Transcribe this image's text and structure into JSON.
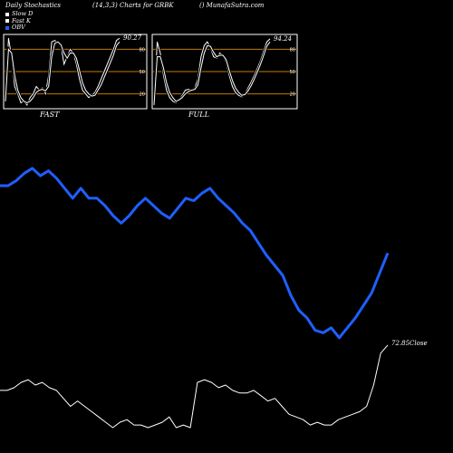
{
  "header": {
    "left": "Daily Stochastics",
    "center": "(14,3,3) Charts for GRBK",
    "right": "() MunafaSutra.com"
  },
  "legend": [
    {
      "label": "Slow  D",
      "color": "#ffffff"
    },
    {
      "label": "Fast K",
      "color": "#ffffff"
    },
    {
      "label": "OBV",
      "color": "#1f5fff"
    }
  ],
  "colors": {
    "obv": "#1f5fff",
    "stoch": "#ffffff",
    "ref_line": "#c47a00",
    "bg": "#000000"
  },
  "chart_data": [
    {
      "type": "line",
      "title": "FAST",
      "ylim": [
        0,
        100
      ],
      "yticks": [
        20,
        50,
        80
      ],
      "last_value_label": "90.27",
      "series": [
        {
          "name": "Fast K",
          "values": [
            10,
            95,
            70,
            30,
            20,
            8,
            10,
            5,
            15,
            20,
            30,
            25,
            28,
            20,
            45,
            90,
            92,
            88,
            85,
            60,
            70,
            80,
            75,
            60,
            40,
            25,
            20,
            15,
            18,
            22,
            30,
            40,
            50,
            60,
            70,
            80,
            92,
            95
          ]
        },
        {
          "name": "Slow  D",
          "values": [
            10,
            80,
            75,
            45,
            25,
            15,
            10,
            8,
            10,
            15,
            22,
            25,
            26,
            24,
            30,
            70,
            88,
            90,
            86,
            75,
            68,
            75,
            75,
            68,
            52,
            35,
            25,
            20,
            17,
            18,
            25,
            32,
            42,
            52,
            62,
            72,
            85,
            90
          ]
        }
      ]
    },
    {
      "type": "line",
      "title": "FULL",
      "ylim": [
        0,
        100
      ],
      "yticks": [
        20,
        50,
        80
      ],
      "last_value_label": "94.24",
      "series": [
        {
          "name": "Fast K",
          "values": [
            5,
            90,
            75,
            45,
            25,
            15,
            10,
            8,
            12,
            18,
            25,
            26,
            25,
            28,
            40,
            70,
            85,
            90,
            82,
            70,
            68,
            75,
            72,
            62,
            45,
            30,
            22,
            18,
            16,
            20,
            28,
            36,
            45,
            55,
            65,
            78,
            90,
            94
          ]
        },
        {
          "name": "Slow  D",
          "values": [
            5,
            70,
            70,
            55,
            35,
            22,
            15,
            10,
            12,
            15,
            20,
            23,
            25,
            26,
            32,
            55,
            75,
            85,
            84,
            76,
            70,
            72,
            72,
            66,
            52,
            38,
            28,
            22,
            18,
            19,
            24,
            31,
            40,
            50,
            60,
            72,
            84,
            90
          ]
        }
      ]
    },
    {
      "type": "line",
      "title": "",
      "ylim": [
        0,
        100
      ],
      "series": [
        {
          "name": "OBV",
          "values": [
            80,
            80,
            82,
            85,
            87,
            84,
            86,
            83,
            79,
            75,
            79,
            75,
            75,
            72,
            68,
            65,
            68,
            72,
            75,
            72,
            69,
            67,
            71,
            75,
            74,
            77,
            79,
            75,
            72,
            69,
            65,
            62,
            57,
            52,
            48,
            44,
            36,
            30,
            27,
            22,
            21,
            23,
            19,
            23,
            27,
            32,
            37,
            45,
            53
          ]
        }
      ]
    },
    {
      "type": "line",
      "title": "",
      "last_value_label": "72.85",
      "last_value_suffix": "Close",
      "series": [
        {
          "name": "Close",
          "values": [
            72.0,
            72.0,
            72.05,
            72.15,
            72.2,
            72.1,
            72.15,
            72.05,
            72.0,
            71.85,
            71.7,
            71.8,
            71.7,
            71.6,
            71.5,
            71.4,
            71.3,
            71.4,
            71.45,
            71.35,
            71.35,
            71.3,
            71.35,
            71.4,
            71.5,
            71.3,
            71.35,
            71.3,
            72.15,
            72.2,
            72.15,
            72.05,
            72.1,
            72.0,
            71.95,
            71.95,
            72.0,
            71.9,
            71.8,
            71.85,
            71.7,
            71.55,
            71.5,
            71.45,
            71.35,
            71.4,
            71.35,
            71.35,
            71.45,
            71.5,
            71.55,
            71.6,
            71.7,
            72.1,
            72.7,
            72.85
          ]
        }
      ]
    }
  ]
}
